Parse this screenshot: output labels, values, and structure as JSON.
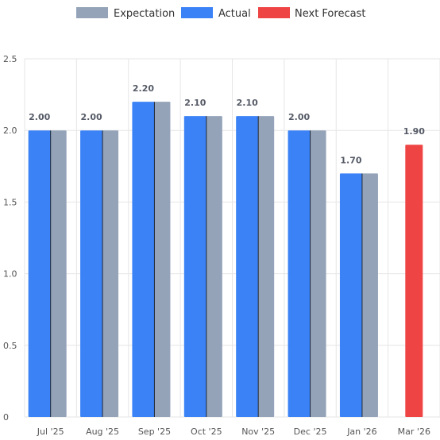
{
  "chart_data": {
    "type": "bar",
    "categories": [
      "Jul '25",
      "Aug '25",
      "Sep '25",
      "Oct '25",
      "Nov '25",
      "Dec '25",
      "Jan '26",
      "Mar '26"
    ],
    "series": [
      {
        "name": "Expectation",
        "values": [
          2.0,
          2.0,
          2.2,
          2.1,
          2.1,
          2.0,
          1.7,
          null
        ]
      },
      {
        "name": "Actual",
        "values": [
          2.0,
          2.0,
          2.2,
          2.1,
          2.1,
          2.0,
          1.7,
          null
        ]
      },
      {
        "name": "Next Forecast",
        "values": [
          null,
          null,
          null,
          null,
          null,
          null,
          null,
          1.9
        ]
      }
    ],
    "data_labels": [
      "2.00",
      "2.00",
      "2.20",
      "2.10",
      "2.10",
      "2.00",
      "1.70",
      "1.90"
    ],
    "y_ticks": [
      "0",
      "0.5",
      "1.0",
      "1.5",
      "2.0",
      "2.5"
    ],
    "ylim": [
      0,
      2.5
    ],
    "grid": true,
    "legend": "top-center",
    "colors": {
      "Expectation": "#94a3b8",
      "Actual": "#3b82f6",
      "Next Forecast": "#ef4444"
    }
  }
}
